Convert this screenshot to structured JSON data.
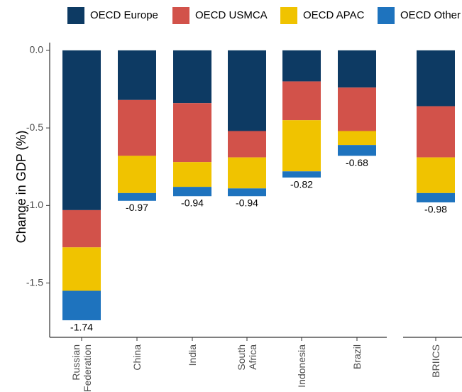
{
  "chart_data": {
    "type": "bar",
    "stacked": true,
    "orientation": "vertical",
    "ylabel": "Change in GDP (%)",
    "xlabel": "",
    "ylim": [
      -1.85,
      0.05
    ],
    "yticks": [
      0.0,
      -0.5,
      -1.0,
      -1.5
    ],
    "ytick_labels": [
      "0.0",
      "-0.5",
      "-1.0",
      "-1.5"
    ],
    "grid": false,
    "legend_position": "top",
    "categories": [
      "Russian Federation",
      "China",
      "India",
      "South Africa",
      "Indonesia",
      "Brazil",
      "BRIICS"
    ],
    "category_labels": [
      [
        "Russian",
        "Federation"
      ],
      [
        "China"
      ],
      [
        "India"
      ],
      [
        "South",
        "Africa"
      ],
      [
        "Indonesia"
      ],
      [
        "Brazil"
      ],
      [
        "BRIICS"
      ]
    ],
    "panels": [
      [
        "Russian Federation",
        "China",
        "India",
        "South Africa",
        "Indonesia",
        "Brazil"
      ],
      [
        "BRIICS"
      ]
    ],
    "series": [
      {
        "name": "OECD Europe",
        "color": "#0d3a63",
        "values": [
          -1.03,
          -0.32,
          -0.34,
          -0.52,
          -0.2,
          -0.24,
          -0.36
        ]
      },
      {
        "name": "OECD USMCA",
        "color": "#d2524a",
        "values": [
          -0.24,
          -0.36,
          -0.38,
          -0.17,
          -0.25,
          -0.28,
          -0.33
        ]
      },
      {
        "name": "OECD APAC",
        "color": "#f0c300",
        "values": [
          -0.28,
          -0.24,
          -0.16,
          -0.2,
          -0.33,
          -0.09,
          -0.23
        ]
      },
      {
        "name": "OECD Other",
        "color": "#1e73be",
        "values": [
          -0.19,
          -0.05,
          -0.06,
          -0.05,
          -0.04,
          -0.07,
          -0.06
        ]
      }
    ],
    "totals": [
      -1.74,
      -0.97,
      -0.94,
      -0.94,
      -0.82,
      -0.68,
      -0.98
    ],
    "total_labels": [
      "-1.74",
      "-0.97",
      "-0.94",
      "-0.94",
      "-0.82",
      "-0.68",
      "-0.98"
    ]
  }
}
